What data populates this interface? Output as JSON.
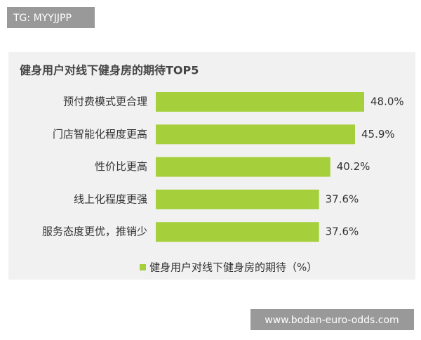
{
  "watermarks": {
    "top": "TG: MYYJJPP",
    "bottom": "www.bodan-euro-odds.com"
  },
  "chart_data": {
    "type": "hbar",
    "title": "健身用户对线下健身房的期待TOP5",
    "categories": [
      "预付费模式更合理",
      "门店智能化程度更高",
      "性价比更高",
      "线上化程度更强",
      "服务态度更优，推销少"
    ],
    "series": [
      {
        "name": "健身用户对线下健身房的期待（%）",
        "color": "#a5cf3b",
        "values": [
          48.0,
          45.9,
          40.2,
          37.6,
          37.6
        ],
        "value_labels": [
          "48.0%",
          "45.9%",
          "40.2%",
          "37.6%",
          "37.6%"
        ]
      }
    ],
    "legend": "bottom"
  }
}
